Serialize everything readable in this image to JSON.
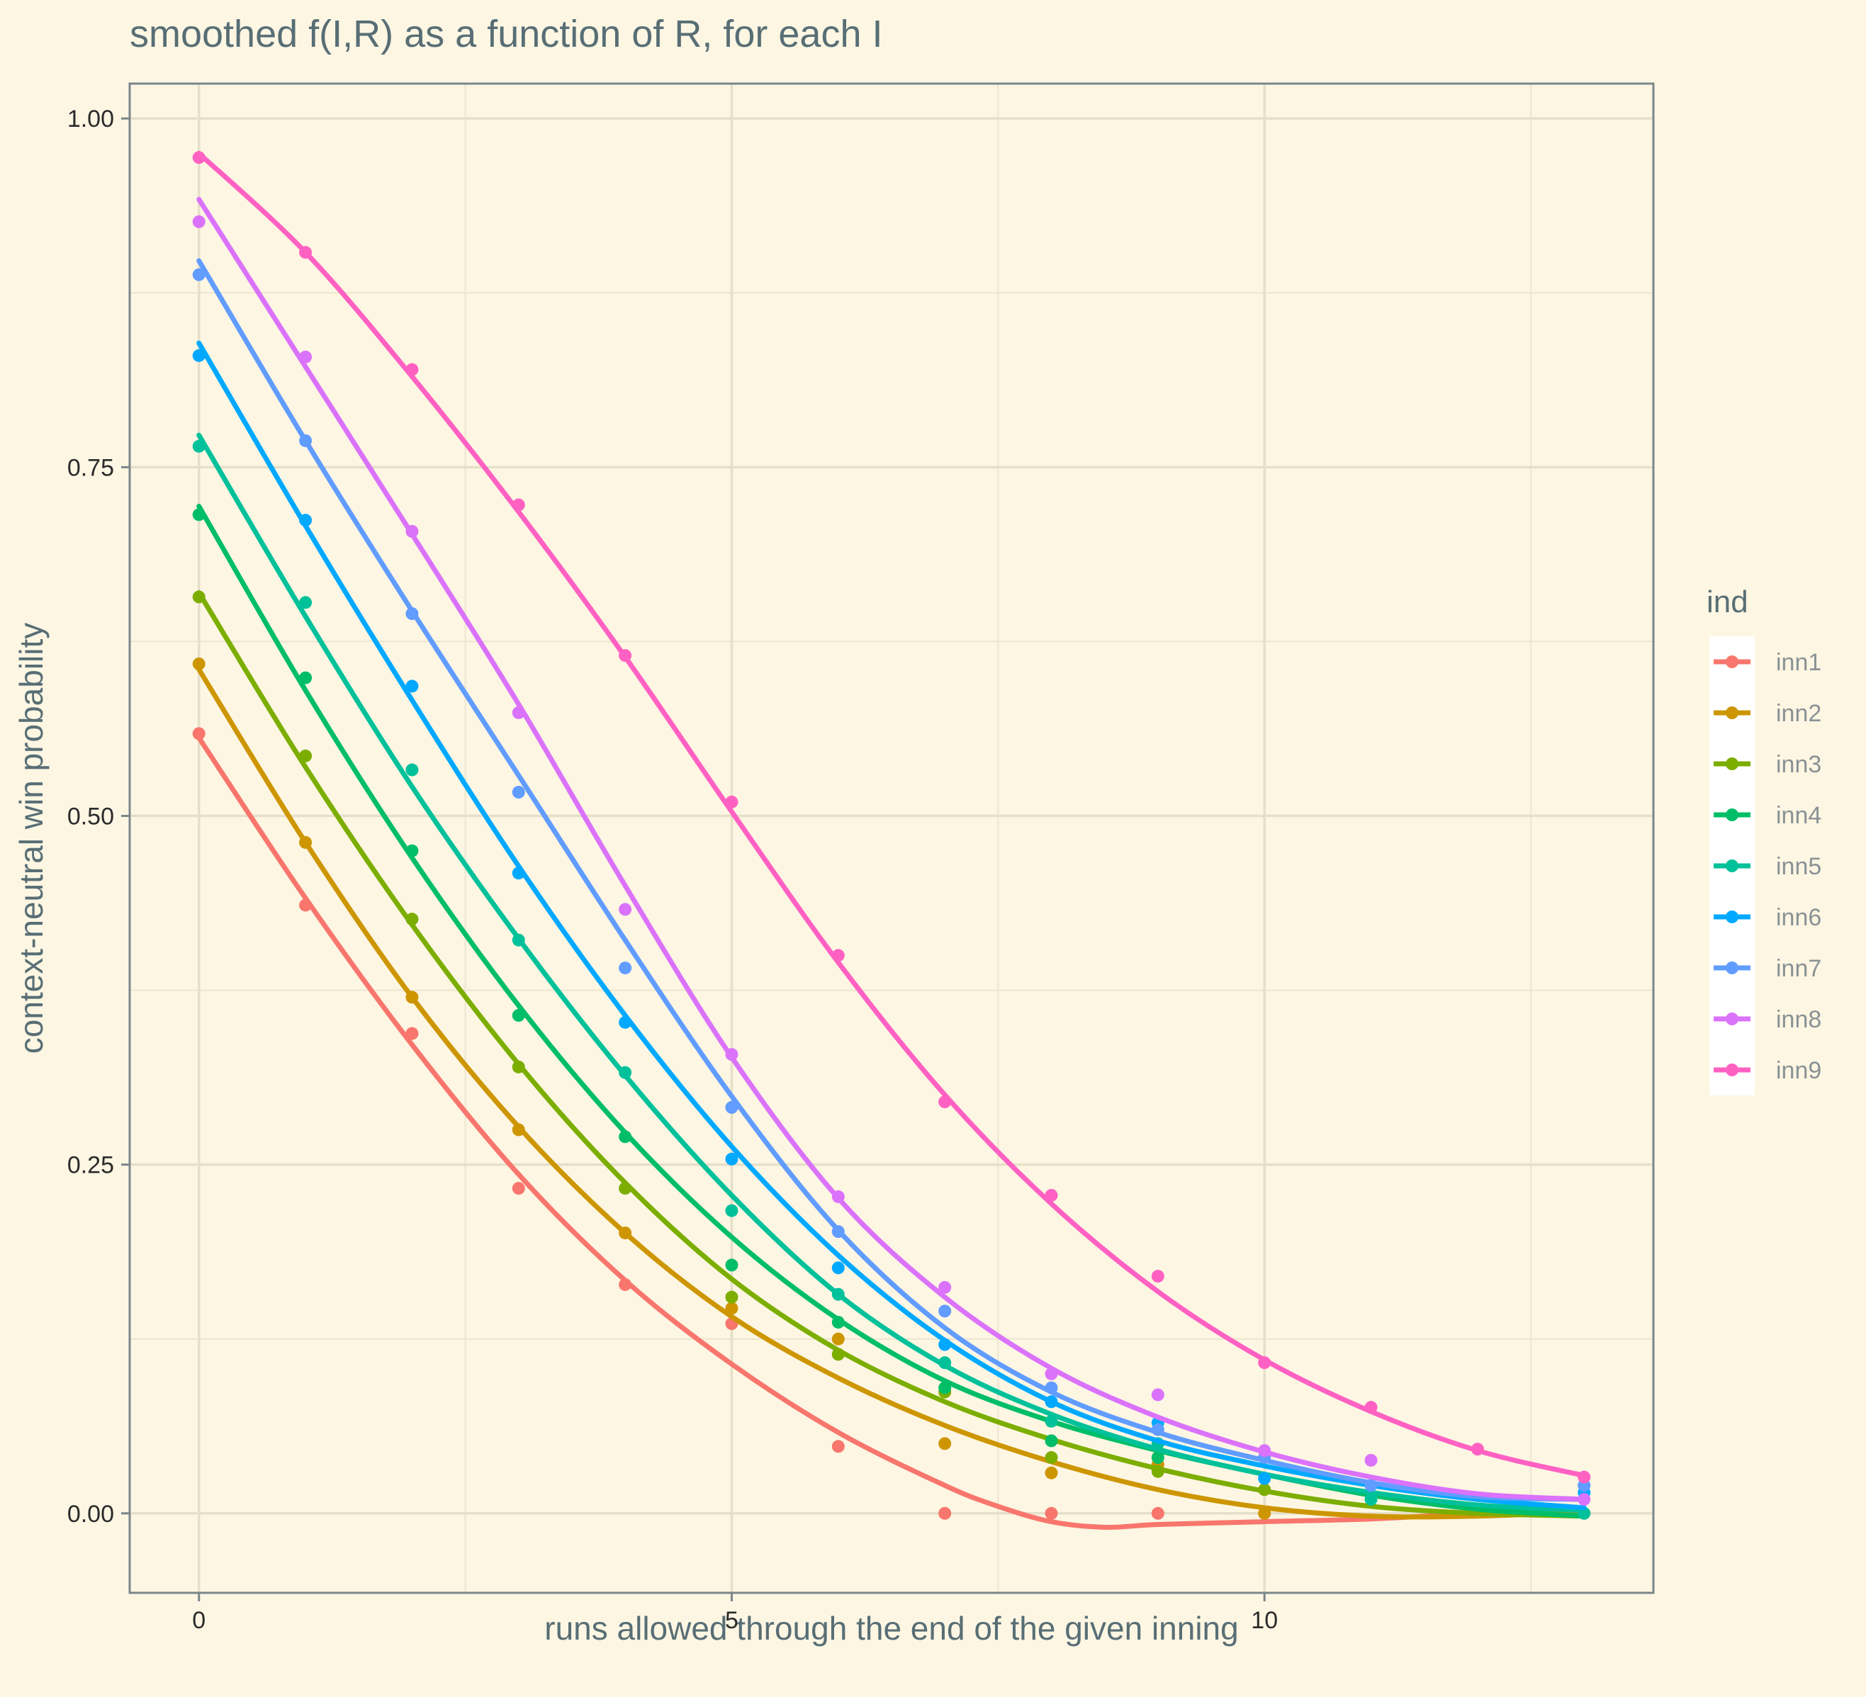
{
  "chart_data": {
    "type": "line",
    "title": "smoothed f(I,R) as a function of R, for each I",
    "xlabel": "runs allowed through the end of the given inning",
    "ylabel": "context-neutral win probability",
    "xlim": [
      -0.65,
      13.65
    ],
    "ylim": [
      -0.057,
      1.025
    ],
    "xticks": [
      0,
      5,
      10
    ],
    "xtick_labels": [
      "0",
      "5",
      "10"
    ],
    "yticks": [
      0,
      0.25,
      0.5,
      0.75,
      1
    ],
    "ytick_labels": [
      "0.00",
      "0.25",
      "0.50",
      "0.75",
      "1.00"
    ],
    "grid": true,
    "legend": {
      "title": "ind",
      "position": "right"
    },
    "series": [
      {
        "name": "inn1",
        "color": "#f8766d",
        "points": [
          [
            0,
            0.559
          ],
          [
            1,
            0.436
          ],
          [
            2,
            0.344
          ],
          [
            3,
            0.233
          ],
          [
            4,
            0.164
          ],
          [
            5,
            0.136
          ],
          [
            6,
            0.048
          ],
          [
            7,
            0.0
          ],
          [
            8,
            0.0
          ],
          [
            9,
            0.0
          ],
          [
            10,
            0.0
          ]
        ],
        "smooth": [
          [
            0,
            0.556
          ],
          [
            1,
            0.441
          ],
          [
            2,
            0.336
          ],
          [
            3,
            0.243
          ],
          [
            4,
            0.167
          ],
          [
            5,
            0.107
          ],
          [
            6,
            0.058
          ],
          [
            7,
            0.02
          ],
          [
            7.5,
            0.005
          ],
          [
            8,
            -0.006
          ],
          [
            8.5,
            -0.01
          ],
          [
            9,
            -0.008
          ],
          [
            10,
            -0.006
          ],
          [
            11,
            -0.004
          ],
          [
            12,
            0.0
          ],
          [
            13,
            0.002
          ]
        ]
      },
      {
        "name": "inn2",
        "color": "#cd9600",
        "points": [
          [
            0,
            0.609
          ],
          [
            1,
            0.481
          ],
          [
            2,
            0.37
          ],
          [
            3,
            0.275
          ],
          [
            4,
            0.201
          ],
          [
            5,
            0.147
          ],
          [
            6,
            0.125
          ],
          [
            7,
            0.05
          ],
          [
            8,
            0.029
          ],
          [
            9,
            0.035
          ],
          [
            10,
            0.0
          ]
        ],
        "smooth": [
          [
            0,
            0.605
          ],
          [
            1,
            0.481
          ],
          [
            2,
            0.37
          ],
          [
            3,
            0.277
          ],
          [
            4,
            0.201
          ],
          [
            5,
            0.141
          ],
          [
            6,
            0.097
          ],
          [
            7,
            0.063
          ],
          [
            8,
            0.037
          ],
          [
            9,
            0.017
          ],
          [
            10,
            0.004
          ],
          [
            11,
            -0.002
          ],
          [
            12,
            -0.002
          ],
          [
            13,
            0.001
          ]
        ]
      },
      {
        "name": "inn3",
        "color": "#7cae00",
        "points": [
          [
            0,
            0.657
          ],
          [
            1,
            0.543
          ],
          [
            2,
            0.426
          ],
          [
            3,
            0.32
          ],
          [
            4,
            0.233
          ],
          [
            5,
            0.155
          ],
          [
            6,
            0.114
          ],
          [
            7,
            0.087
          ],
          [
            8,
            0.04
          ],
          [
            9,
            0.03
          ],
          [
            10,
            0.017
          ]
        ],
        "smooth": [
          [
            0,
            0.66
          ],
          [
            1,
            0.535
          ],
          [
            2,
            0.422
          ],
          [
            3,
            0.322
          ],
          [
            4,
            0.237
          ],
          [
            5,
            0.168
          ],
          [
            6,
            0.117
          ],
          [
            7,
            0.08
          ],
          [
            8,
            0.053
          ],
          [
            9,
            0.032
          ],
          [
            10,
            0.016
          ],
          [
            11,
            0.005
          ],
          [
            12,
            0.0
          ],
          [
            13,
            -0.002
          ]
        ]
      },
      {
        "name": "inn4",
        "color": "#00be67",
        "points": [
          [
            0,
            0.716
          ],
          [
            1,
            0.599
          ],
          [
            2,
            0.475
          ],
          [
            3,
            0.357
          ],
          [
            4,
            0.27
          ],
          [
            5,
            0.178
          ],
          [
            6,
            0.137
          ],
          [
            7,
            0.09
          ],
          [
            8,
            0.052
          ],
          [
            9,
            0.04
          ]
        ],
        "smooth": [
          [
            0,
            0.722
          ],
          [
            1,
            0.59
          ],
          [
            2,
            0.47
          ],
          [
            3,
            0.364
          ],
          [
            4,
            0.273
          ],
          [
            5,
            0.198
          ],
          [
            6,
            0.139
          ],
          [
            7,
            0.095
          ],
          [
            8,
            0.066
          ],
          [
            9,
            0.045
          ],
          [
            10,
            0.028
          ],
          [
            11,
            0.013
          ],
          [
            12,
            0.003
          ],
          [
            13,
            -0.002
          ]
        ]
      },
      {
        "name": "inn5",
        "color": "#00c19a",
        "points": [
          [
            0,
            0.765
          ],
          [
            1,
            0.653
          ],
          [
            2,
            0.533
          ],
          [
            3,
            0.411
          ],
          [
            4,
            0.316
          ],
          [
            5,
            0.217
          ],
          [
            6,
            0.157
          ],
          [
            7,
            0.108
          ],
          [
            8,
            0.066
          ],
          [
            9,
            0.05
          ],
          [
            11,
            0.01
          ],
          [
            13,
            0.0
          ]
        ],
        "smooth": [
          [
            0,
            0.773
          ],
          [
            1,
            0.643
          ],
          [
            2,
            0.521
          ],
          [
            3,
            0.412
          ],
          [
            4,
            0.314
          ],
          [
            5,
            0.228
          ],
          [
            6,
            0.157
          ],
          [
            7,
            0.106
          ],
          [
            8,
            0.071
          ],
          [
            9,
            0.046
          ],
          [
            10,
            0.028
          ],
          [
            11,
            0.015
          ],
          [
            12,
            0.006
          ],
          [
            13,
            0.002
          ]
        ]
      },
      {
        "name": "inn6",
        "color": "#00a9ff",
        "points": [
          [
            0,
            0.83
          ],
          [
            1,
            0.712
          ],
          [
            2,
            0.593
          ],
          [
            3,
            0.459
          ],
          [
            4,
            0.352
          ],
          [
            5,
            0.254
          ],
          [
            6,
            0.176
          ],
          [
            7,
            0.121
          ],
          [
            8,
            0.08
          ],
          [
            9,
            0.065
          ],
          [
            10,
            0.025
          ],
          [
            11,
            0.02
          ],
          [
            13,
            0.015
          ]
        ],
        "smooth": [
          [
            0,
            0.839
          ],
          [
            1,
            0.708
          ],
          [
            2,
            0.583
          ],
          [
            3,
            0.464
          ],
          [
            4,
            0.357
          ],
          [
            5,
            0.263
          ],
          [
            6,
            0.185
          ],
          [
            7,
            0.124
          ],
          [
            8,
            0.08
          ],
          [
            9,
            0.052
          ],
          [
            10,
            0.034
          ],
          [
            11,
            0.02
          ],
          [
            12,
            0.01
          ],
          [
            13,
            0.004
          ]
        ]
      },
      {
        "name": "inn7",
        "color": "#619cff",
        "points": [
          [
            0,
            0.888
          ],
          [
            1,
            0.769
          ],
          [
            2,
            0.645
          ],
          [
            3,
            0.517
          ],
          [
            4,
            0.391
          ],
          [
            5,
            0.291
          ],
          [
            6,
            0.202
          ],
          [
            7,
            0.145
          ],
          [
            8,
            0.09
          ],
          [
            9,
            0.06
          ],
          [
            10,
            0.04
          ],
          [
            11,
            0.02
          ],
          [
            13,
            0.02
          ]
        ],
        "smooth": [
          [
            0,
            0.898
          ],
          [
            1,
            0.769
          ],
          [
            2,
            0.647
          ],
          [
            3,
            0.529
          ],
          [
            4,
            0.411
          ],
          [
            5,
            0.299
          ],
          [
            6,
            0.203
          ],
          [
            7,
            0.133
          ],
          [
            8,
            0.087
          ],
          [
            9,
            0.058
          ],
          [
            10,
            0.038
          ],
          [
            11,
            0.022
          ],
          [
            12,
            0.012
          ],
          [
            13,
            0.01
          ]
        ]
      },
      {
        "name": "inn8",
        "color": "#db72fb",
        "points": [
          [
            0,
            0.926
          ],
          [
            1,
            0.829
          ],
          [
            2,
            0.704
          ],
          [
            3,
            0.574
          ],
          [
            4,
            0.433
          ],
          [
            5,
            0.329
          ],
          [
            6,
            0.227
          ],
          [
            7,
            0.162
          ],
          [
            8,
            0.1
          ],
          [
            9,
            0.085
          ],
          [
            10,
            0.045
          ],
          [
            11,
            0.038
          ],
          [
            13,
            0.01
          ]
        ],
        "smooth": [
          [
            0,
            0.942
          ],
          [
            1,
            0.822
          ],
          [
            2,
            0.702
          ],
          [
            3,
            0.58
          ],
          [
            4,
            0.45
          ],
          [
            5,
            0.327
          ],
          [
            6,
            0.226
          ],
          [
            7,
            0.155
          ],
          [
            8,
            0.104
          ],
          [
            9,
            0.069
          ],
          [
            10,
            0.044
          ],
          [
            11,
            0.026
          ],
          [
            12,
            0.014
          ],
          [
            13,
            0.01
          ]
        ]
      },
      {
        "name": "inn9",
        "color": "#ff61c3",
        "points": [
          [
            0,
            0.972
          ],
          [
            1,
            0.904
          ],
          [
            2,
            0.82
          ],
          [
            3,
            0.723
          ],
          [
            4,
            0.615
          ],
          [
            5,
            0.51
          ],
          [
            6,
            0.4
          ],
          [
            7,
            0.295
          ],
          [
            8,
            0.228
          ],
          [
            9,
            0.17
          ],
          [
            10,
            0.108
          ],
          [
            11,
            0.076
          ],
          [
            12,
            0.046
          ],
          [
            13,
            0.026
          ]
        ],
        "smooth": [
          [
            0,
            0.975
          ],
          [
            1,
            0.904
          ],
          [
            2,
            0.815
          ],
          [
            3,
            0.718
          ],
          [
            4,
            0.614
          ],
          [
            5,
            0.503
          ],
          [
            6,
            0.395
          ],
          [
            7,
            0.3
          ],
          [
            8,
            0.222
          ],
          [
            9,
            0.159
          ],
          [
            10,
            0.11
          ],
          [
            11,
            0.073
          ],
          [
            12,
            0.045
          ],
          [
            13,
            0.027
          ]
        ]
      }
    ]
  }
}
